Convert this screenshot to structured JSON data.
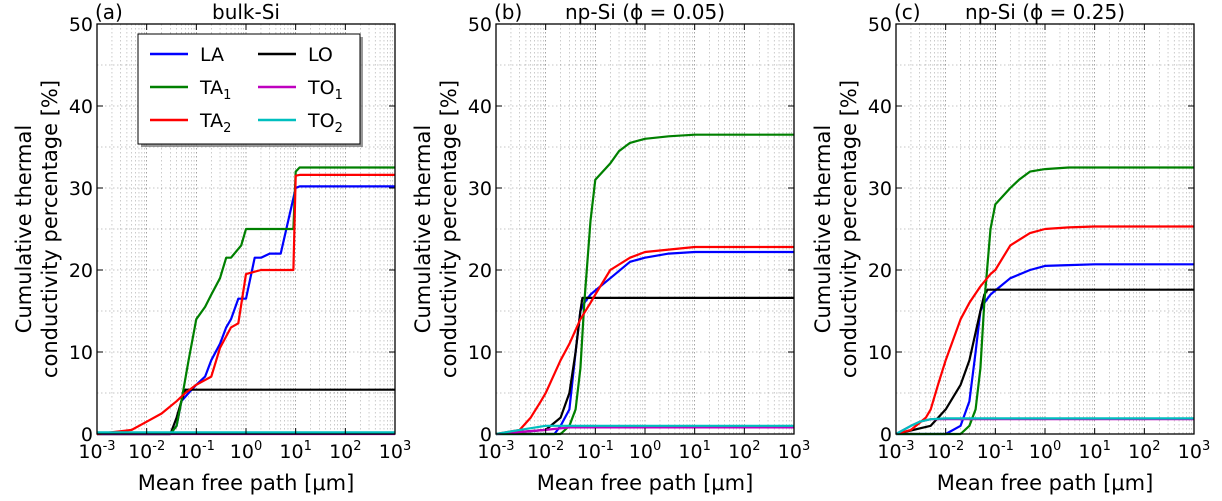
{
  "figure": {
    "legend": [
      {
        "label": "LA",
        "color": "#0000ff"
      },
      {
        "label": "LO",
        "color": "#000000"
      },
      {
        "label": "TA",
        "sub": "1",
        "color": "#008000"
      },
      {
        "label": "TO",
        "sub": "1",
        "color": "#bf00bf"
      },
      {
        "label": "TA",
        "sub": "2",
        "color": "#ff0000"
      },
      {
        "label": "TO",
        "sub": "2",
        "color": "#00bfbf"
      }
    ]
  },
  "chart_data": [
    {
      "type": "line",
      "panel_label": "(a)",
      "title": "bulk-Si",
      "xlabel": "Mean free path [μm]",
      "ylabel_lines": [
        "Cumulative thermal",
        "conductivity percentage [%]"
      ],
      "xscale": "log",
      "xlim": [
        0.001,
        1000
      ],
      "ylim": [
        0,
        50
      ],
      "xticks": [
        "10^-3",
        "10^-2",
        "10^-1",
        "10^0",
        "10^1",
        "10^2",
        "10^3"
      ],
      "yticks": [
        "0",
        "10",
        "20",
        "30",
        "40",
        "50"
      ],
      "grid": true,
      "legend_position": "top",
      "series": [
        {
          "name": "LA",
          "color": "#0000ff",
          "x": [
            0.001,
            0.03,
            0.04,
            0.05,
            0.07,
            0.1,
            0.15,
            0.2,
            0.3,
            0.4,
            0.5,
            0.7,
            1.0,
            1.5,
            2.0,
            3.0,
            5.0,
            10.0,
            12.0,
            1000
          ],
          "y": [
            0,
            0,
            1,
            4,
            5,
            6,
            7,
            9,
            11,
            13,
            14,
            16.5,
            16.5,
            21.5,
            21.5,
            22,
            22,
            30,
            30.2,
            30.2
          ]
        },
        {
          "name": "LO",
          "color": "#000000",
          "x": [
            0.001,
            0.03,
            0.04,
            0.05,
            0.06,
            1000
          ],
          "y": [
            0,
            0,
            2,
            4,
            5.4,
            5.4
          ]
        },
        {
          "name": "TA1",
          "color": "#008000",
          "x": [
            0.001,
            0.03,
            0.04,
            0.05,
            0.07,
            0.1,
            0.15,
            0.2,
            0.3,
            0.4,
            0.5,
            0.8,
            1.0,
            2.0,
            3.0,
            5.0,
            9.0,
            10.0,
            12.0,
            1000
          ],
          "y": [
            0,
            0,
            1,
            4,
            9,
            14,
            15.5,
            17,
            19,
            21.5,
            21.5,
            23,
            25,
            25,
            25,
            25,
            25,
            32,
            32.5,
            32.5
          ]
        },
        {
          "name": "TO1",
          "color": "#bf00bf",
          "x": [
            0.001,
            1000
          ],
          "y": [
            0,
            0
          ]
        },
        {
          "name": "TA2",
          "color": "#ff0000",
          "x": [
            0.001,
            0.005,
            0.01,
            0.02,
            0.04,
            0.06,
            0.1,
            0.2,
            0.3,
            0.5,
            0.7,
            1.0,
            2.0,
            5.0,
            9.0,
            10.0,
            12.0,
            1000
          ],
          "y": [
            0,
            0.5,
            1.5,
            2.5,
            4,
            5,
            6,
            7,
            10.5,
            13,
            13.5,
            19.5,
            20,
            20,
            20,
            31.5,
            31.6,
            31.6
          ]
        },
        {
          "name": "TO2",
          "color": "#00bfbf",
          "x": [
            0.001,
            1000
          ],
          "y": [
            0.2,
            0.2
          ]
        }
      ]
    },
    {
      "type": "line",
      "panel_label": "(b)",
      "title": "np-Si (ϕ = 0.05)",
      "xlabel": "Mean free path [μm]",
      "ylabel_lines": [
        "Cumulative thermal",
        "conductivity percentage [%]"
      ],
      "xscale": "log",
      "xlim": [
        0.001,
        1000
      ],
      "ylim": [
        0,
        50
      ],
      "xticks": [
        "10^-3",
        "10^-2",
        "10^-1",
        "10^0",
        "10^1",
        "10^2",
        "10^3"
      ],
      "yticks": [
        "0",
        "10",
        "20",
        "30",
        "40",
        "50"
      ],
      "grid": true,
      "series": [
        {
          "name": "LA",
          "color": "#0000ff",
          "x": [
            0.001,
            0.015,
            0.02,
            0.03,
            0.04,
            0.05,
            0.06,
            0.08,
            0.1,
            0.2,
            0.5,
            1.0,
            3.0,
            10.0,
            1000
          ],
          "y": [
            0,
            0,
            1,
            3,
            10,
            15,
            16,
            17,
            17.5,
            19,
            21,
            21.5,
            22,
            22.2,
            22.2
          ]
        },
        {
          "name": "LO",
          "color": "#000000",
          "x": [
            0.001,
            0.01,
            0.02,
            0.03,
            0.04,
            0.05,
            0.055,
            1000
          ],
          "y": [
            0,
            0.5,
            2,
            5,
            10,
            15,
            16.6,
            16.6
          ]
        },
        {
          "name": "TA1",
          "color": "#008000",
          "x": [
            0.001,
            0.02,
            0.03,
            0.04,
            0.05,
            0.06,
            0.08,
            0.1,
            0.2,
            0.3,
            0.5,
            1.0,
            3.0,
            10.0,
            1000
          ],
          "y": [
            0,
            0,
            1,
            3,
            8,
            16,
            26,
            31,
            33,
            34.5,
            35.5,
            36,
            36.3,
            36.5,
            36.5
          ]
        },
        {
          "name": "TO1",
          "color": "#bf00bf",
          "x": [
            0.001,
            0.01,
            0.03,
            1000
          ],
          "y": [
            0,
            0.5,
            0.8,
            0.8
          ]
        },
        {
          "name": "TA2",
          "color": "#ff0000",
          "x": [
            0.001,
            0.003,
            0.005,
            0.008,
            0.01,
            0.02,
            0.03,
            0.05,
            0.08,
            0.1,
            0.2,
            0.5,
            1.0,
            10.0,
            1000
          ],
          "y": [
            0,
            0.5,
            2,
            4,
            5,
            9,
            11,
            14,
            16,
            17,
            20,
            21.5,
            22.2,
            22.8,
            22.8
          ]
        },
        {
          "name": "TO2",
          "color": "#00bfbf",
          "x": [
            0.001,
            0.003,
            0.01,
            0.03,
            1000
          ],
          "y": [
            0,
            0.5,
            1,
            1,
            1
          ]
        }
      ]
    },
    {
      "type": "line",
      "panel_label": "(c)",
      "title": "np-Si (ϕ = 0.25)",
      "xlabel": "Mean free path [μm]",
      "ylabel_lines": [
        "Cumulative thermal",
        "conductivity percentage [%]"
      ],
      "xscale": "log",
      "xlim": [
        0.001,
        1000
      ],
      "ylim": [
        0,
        50
      ],
      "xticks": [
        "10^-3",
        "10^-2",
        "10^-1",
        "10^0",
        "10^1",
        "10^2",
        "10^3"
      ],
      "yticks": [
        "0",
        "10",
        "20",
        "30",
        "40",
        "50"
      ],
      "grid": true,
      "series": [
        {
          "name": "LA",
          "color": "#0000ff",
          "x": [
            0.001,
            0.01,
            0.02,
            0.03,
            0.04,
            0.05,
            0.06,
            0.08,
            0.1,
            0.2,
            0.5,
            1.0,
            3.0,
            10.0,
            1000
          ],
          "y": [
            0,
            0,
            1,
            4,
            10,
            15,
            16,
            17,
            17.5,
            19,
            20,
            20.5,
            20.6,
            20.7,
            20.7
          ]
        },
        {
          "name": "LO",
          "color": "#000000",
          "x": [
            0.001,
            0.005,
            0.01,
            0.02,
            0.03,
            0.05,
            0.06,
            0.07,
            1000
          ],
          "y": [
            0,
            1,
            3,
            6,
            9,
            15,
            17,
            17.6,
            17.6
          ]
        },
        {
          "name": "TA1",
          "color": "#008000",
          "x": [
            0.001,
            0.02,
            0.03,
            0.04,
            0.05,
            0.06,
            0.08,
            0.1,
            0.2,
            0.3,
            0.5,
            1.0,
            3.0,
            10.0,
            1000
          ],
          "y": [
            0,
            0,
            1,
            3,
            8,
            16,
            25,
            28,
            30,
            31,
            32,
            32.3,
            32.5,
            32.5,
            32.5
          ]
        },
        {
          "name": "TO1",
          "color": "#bf00bf",
          "x": [
            0.001,
            0.002,
            0.003,
            0.005,
            1000
          ],
          "y": [
            0,
            1,
            1.5,
            1.8,
            1.8
          ]
        },
        {
          "name": "TA2",
          "color": "#ff0000",
          "x": [
            0.001,
            0.002,
            0.004,
            0.005,
            0.007,
            0.01,
            0.02,
            0.03,
            0.05,
            0.08,
            0.1,
            0.2,
            0.5,
            1.0,
            3.0,
            10.0,
            1000
          ],
          "y": [
            0,
            0.5,
            2,
            3,
            6,
            9,
            14,
            16,
            18,
            19.5,
            20,
            23,
            24.5,
            25,
            25.2,
            25.3,
            25.3
          ]
        },
        {
          "name": "TO2",
          "color": "#00bfbf",
          "x": [
            0.001,
            0.002,
            0.003,
            0.005,
            0.01,
            1000
          ],
          "y": [
            0,
            1,
            1.5,
            1.8,
            1.9,
            1.9
          ]
        }
      ]
    }
  ]
}
